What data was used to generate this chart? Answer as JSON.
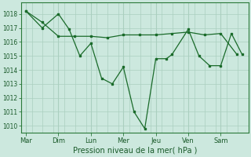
{
  "background_color": "#cce8de",
  "grid_color": "#aacfbf",
  "line_color": "#1a6b2a",
  "marker_color": "#1a6b2a",
  "xlabel": "Pression niveau de la mer( hPa )",
  "xlabel_fontsize": 7,
  "xlabel_color": "#1a5a2a",
  "ylim": [
    1009.5,
    1018.8
  ],
  "yticks": [
    1010,
    1011,
    1012,
    1013,
    1014,
    1015,
    1016,
    1017,
    1018
  ],
  "ytick_fontsize": 5.5,
  "xtick_labels": [
    "Mar",
    "Dim",
    "Lun",
    "Mer",
    "Jeu",
    "Ven",
    "Sam"
  ],
  "xtick_fontsize": 6,
  "series": [
    {
      "x": [
        0,
        0.5,
        1.0,
        1.5,
        2.0,
        2.5,
        3.0,
        3.5,
        4.0,
        4.5,
        5.0,
        5.5,
        6.0,
        6.5
      ],
      "y": [
        1018.2,
        1017.4,
        1016.4,
        1016.4,
        1016.4,
        1016.3,
        1016.5,
        1016.5,
        1016.5,
        1016.6,
        1016.7,
        1016.5,
        1016.6,
        1015.1
      ]
    },
    {
      "x": [
        0,
        0.5,
        1.0,
        1.33,
        1.66,
        2.0,
        2.33,
        2.66,
        3.0,
        3.33,
        3.66,
        4.0,
        4.33,
        4.5,
        5.0,
        5.33,
        5.66,
        6.0,
        6.33,
        6.66
      ],
      "y": [
        1018.2,
        1017.0,
        1018.0,
        1016.9,
        1015.0,
        1015.9,
        1013.4,
        1013.0,
        1014.2,
        1011.0,
        1009.8,
        1014.8,
        1014.8,
        1015.1,
        1016.9,
        1015.0,
        1014.3,
        1014.3,
        1016.6,
        1015.1
      ]
    }
  ]
}
